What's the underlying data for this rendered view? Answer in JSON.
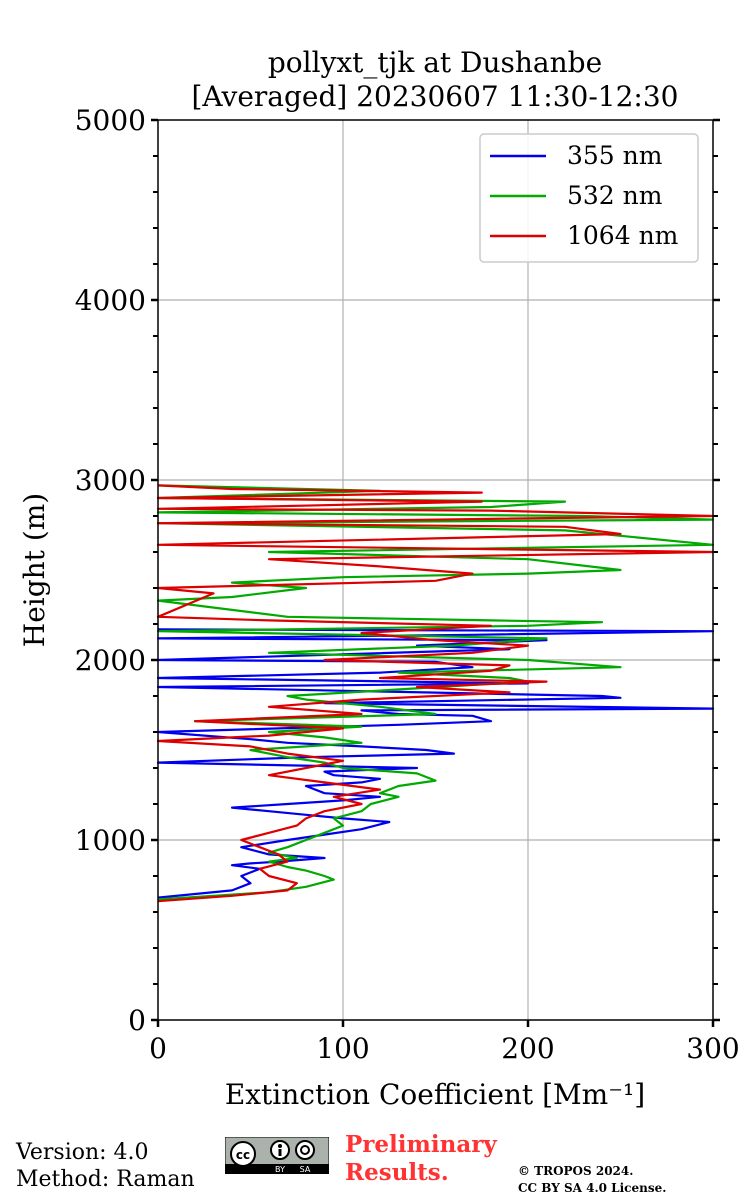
{
  "chart_data": {
    "type": "line",
    "title_line1": "pollyxt_tjk at Dushanbe",
    "title_line2": "[Averaged] 20230607 11:30-12:30",
    "xlabel": "Extinction Coefficient [Mm⁻¹]",
    "ylabel": "Height (m)",
    "xlim": [
      0,
      300
    ],
    "ylim": [
      0,
      5000
    ],
    "xticks": [
      0,
      100,
      200,
      300
    ],
    "yticks": [
      0,
      1000,
      2000,
      3000,
      4000,
      5000
    ],
    "xtick_labels": [
      "0",
      "100",
      "200",
      "300"
    ],
    "ytick_labels": [
      "0",
      "1000",
      "2000",
      "3000",
      "4000",
      "5000"
    ],
    "grid": true,
    "legend_position": "top-right",
    "series": [
      {
        "name": "355 nm",
        "color": "#0000ee",
        "x": [
          0,
          20,
          40,
          50,
          45,
          55,
          40,
          50,
          65,
          90,
          60,
          45,
          70,
          90,
          110,
          125,
          100,
          80,
          60,
          40,
          70,
          100,
          120,
          90,
          80,
          110,
          120,
          95,
          90,
          140,
          0,
          80,
          160,
          145,
          110,
          70,
          50,
          0,
          130,
          180,
          170,
          130,
          110,
          300,
          90,
          250,
          240,
          0,
          200,
          0,
          120,
          170,
          150,
          0,
          190,
          140,
          210,
          0,
          170,
          300,
          0
        ],
        "y": [
          680,
          700,
          720,
          760,
          800,
          840,
          860,
          870,
          880,
          900,
          920,
          960,
          1000,
          1030,
          1060,
          1100,
          1120,
          1140,
          1160,
          1180,
          1200,
          1220,
          1240,
          1260,
          1300,
          1320,
          1340,
          1360,
          1380,
          1400,
          1430,
          1460,
          1480,
          1500,
          1520,
          1540,
          1560,
          1600,
          1640,
          1660,
          1690,
          1700,
          1720,
          1730,
          1760,
          1790,
          1800,
          1850,
          1870,
          1900,
          1930,
          1960,
          1990,
          2000,
          2060,
          2080,
          2110,
          2120,
          2140,
          2160,
          2170
        ]
      },
      {
        "name": "532 nm",
        "color": "#00aa00",
        "x": [
          0,
          30,
          60,
          80,
          95,
          90,
          80,
          70,
          60,
          75,
          60,
          70,
          80,
          90,
          100,
          95,
          110,
          115,
          130,
          120,
          130,
          150,
          140,
          100,
          90,
          70,
          50,
          110,
          90,
          60,
          110,
          20,
          150,
          120,
          80,
          70,
          120,
          200,
          190,
          130,
          250,
          200,
          60,
          160,
          210,
          0,
          200,
          240,
          180,
          70,
          0,
          40,
          80,
          40,
          100,
          200,
          250,
          200,
          60,
          300,
          220,
          0,
          300,
          230,
          0,
          180,
          220,
          0,
          120,
          0
        ],
        "y": [
          670,
          690,
          710,
          740,
          780,
          800,
          830,
          850,
          880,
          900,
          930,
          960,
          1000,
          1040,
          1080,
          1120,
          1160,
          1200,
          1240,
          1260,
          1300,
          1330,
          1370,
          1400,
          1430,
          1460,
          1500,
          1540,
          1570,
          1600,
          1630,
          1660,
          1700,
          1740,
          1780,
          1800,
          1830,
          1880,
          1900,
          1930,
          1960,
          2000,
          2040,
          2080,
          2120,
          2160,
          2190,
          2210,
          2220,
          2240,
          2330,
          2350,
          2400,
          2430,
          2460,
          2480,
          2500,
          2560,
          2600,
          2640,
          2720,
          2760,
          2780,
          2800,
          2820,
          2850,
          2880,
          2900,
          2940,
          2970
        ]
      },
      {
        "name": "1064 nm",
        "color": "#dd0000",
        "x": [
          0,
          40,
          70,
          75,
          60,
          55,
          70,
          65,
          55,
          45,
          60,
          75,
          80,
          90,
          110,
          95,
          120,
          90,
          60,
          80,
          100,
          70,
          50,
          0,
          60,
          100,
          20,
          110,
          60,
          110,
          190,
          140,
          210,
          120,
          180,
          190,
          90,
          170,
          200,
          150,
          110,
          180,
          60,
          0,
          30,
          0,
          150,
          170,
          120,
          60,
          300,
          0,
          250,
          220,
          0,
          300,
          180,
          0,
          90,
          175,
          0,
          175,
          40,
          0
        ],
        "y": [
          660,
          690,
          720,
          760,
          800,
          840,
          880,
          920,
          960,
          1000,
          1040,
          1080,
          1120,
          1160,
          1200,
          1240,
          1280,
          1320,
          1360,
          1400,
          1440,
          1480,
          1520,
          1550,
          1580,
          1620,
          1660,
          1700,
          1740,
          1780,
          1820,
          1850,
          1880,
          1900,
          1940,
          1970,
          2000,
          2040,
          2080,
          2110,
          2150,
          2190,
          2220,
          2240,
          2370,
          2400,
          2440,
          2480,
          2520,
          2560,
          2600,
          2640,
          2700,
          2740,
          2760,
          2800,
          2830,
          2840,
          2860,
          2880,
          2900,
          2930,
          2950,
          2970
        ]
      }
    ]
  },
  "footer": {
    "version": "Version: 4.0",
    "method": "Method: Raman",
    "preliminary_line1": "Preliminary",
    "preliminary_line2": "Results.",
    "copyright_line1": "© TROPOS 2024.",
    "copyright_line2": "CC BY SA 4.0 License."
  },
  "license_badge": {
    "cc": "cc",
    "by": "BY",
    "sa": "SA"
  }
}
